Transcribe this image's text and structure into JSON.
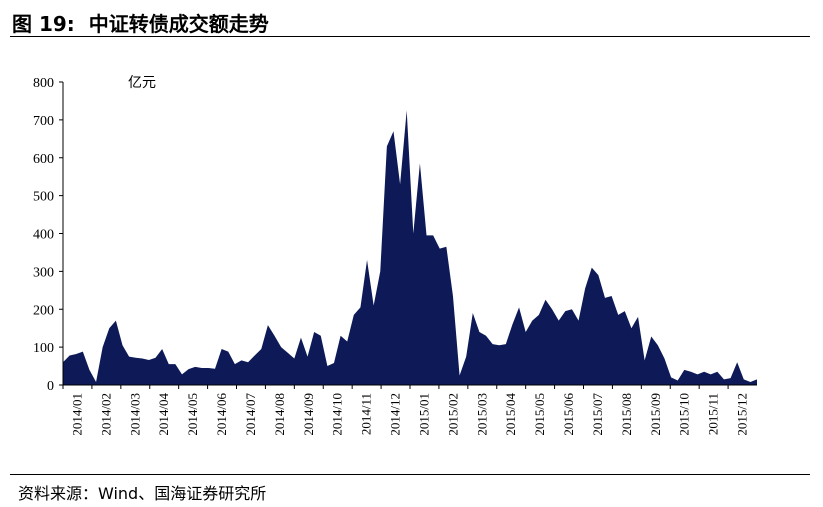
{
  "figure": {
    "label": "图 19:",
    "title": "中证转债成交额走势"
  },
  "source": "资料来源：Wind、国海证券研究所",
  "chart_data": {
    "type": "area",
    "unit_label": "亿元",
    "ylim": [
      0,
      800
    ],
    "yticks": [
      0,
      100,
      200,
      300,
      400,
      500,
      600,
      700,
      800
    ],
    "xticks": [
      "2014/01",
      "2014/02",
      "2014/03",
      "2014/04",
      "2014/05",
      "2014/06",
      "2014/07",
      "2014/08",
      "2014/09",
      "2014/10",
      "2014/11",
      "2014/12",
      "2015/01",
      "2015/02",
      "2015/03",
      "2015/04",
      "2015/05",
      "2015/06",
      "2015/07",
      "2015/08",
      "2015/09",
      "2015/10",
      "2015/11",
      "2015/12"
    ],
    "color": "#0d1a57",
    "grid": false,
    "values": [
      60,
      78,
      82,
      88,
      40,
      8,
      100,
      150,
      170,
      105,
      75,
      72,
      70,
      66,
      72,
      95,
      55,
      55,
      28,
      42,
      48,
      45,
      45,
      43,
      95,
      88,
      55,
      65,
      60,
      78,
      95,
      158,
      130,
      100,
      85,
      70,
      125,
      75,
      140,
      130,
      50,
      58,
      130,
      115,
      185,
      205,
      330,
      210,
      300,
      630,
      670,
      530,
      725,
      400,
      585,
      395,
      395,
      360,
      365,
      235,
      25,
      75,
      190,
      140,
      130,
      108,
      105,
      108,
      160,
      205,
      140,
      170,
      185,
      225,
      200,
      170,
      195,
      200,
      170,
      255,
      310,
      290,
      230,
      235,
      185,
      195,
      150,
      180,
      65,
      128,
      105,
      70,
      20,
      12,
      40,
      35,
      28,
      35,
      28,
      35,
      15,
      18,
      60,
      15,
      8,
      15
    ]
  }
}
